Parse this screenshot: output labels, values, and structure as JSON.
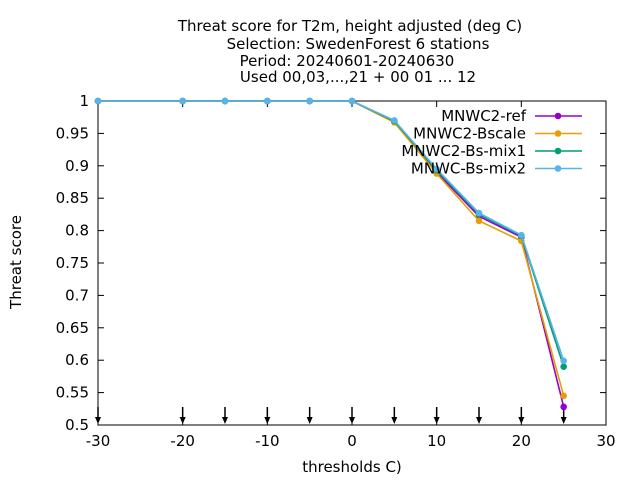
{
  "chart_data": {
    "type": "line",
    "title": [
      "Threat score  for T2m, height adjusted (deg C)",
      "Selection: SwedenForest      6 stations",
      "Period: 20240601-20240630",
      "Used 00,03,...,21 + 00 01 ... 12"
    ],
    "xlabel": "thresholds C)",
    "ylabel": "Threat score",
    "xlim": [
      -30,
      30
    ],
    "ylim": [
      0.5,
      1.0
    ],
    "xticks": [
      -30,
      -20,
      -10,
      0,
      10,
      20,
      30
    ],
    "xtick_labels": [
      "-30",
      "-20",
      "-10",
      "0",
      "10",
      "20",
      "30"
    ],
    "yticks": [
      0.5,
      0.55,
      0.6,
      0.65,
      0.7,
      0.75,
      0.8,
      0.85,
      0.9,
      0.95,
      1.0
    ],
    "ytick_labels": [
      "0.5",
      "0.55",
      "0.6",
      "0.65",
      "0.7",
      "0.75",
      "0.8",
      "0.85",
      "0.9",
      "0.95",
      "1"
    ],
    "x": [
      -30,
      -20,
      -15,
      -10,
      -5,
      0,
      5,
      10,
      15,
      20,
      25
    ],
    "arrow_x": [
      -30,
      -20,
      -15,
      -10,
      -5,
      0,
      5,
      10,
      15,
      20,
      25
    ],
    "legend_position": "top-right",
    "series": [
      {
        "name": "MNWC2-ref",
        "color": "#9400d3",
        "values": [
          1.0,
          1.0,
          1.0,
          1.0,
          1.0,
          1.0,
          0.968,
          0.89,
          0.822,
          0.79,
          0.528
        ]
      },
      {
        "name": "MNWC2-Bscale",
        "color": "#e69f00",
        "values": [
          1.0,
          1.0,
          1.0,
          1.0,
          1.0,
          1.0,
          0.967,
          0.888,
          0.815,
          0.784,
          0.545
        ]
      },
      {
        "name": "MNWC2-Bs-mix1",
        "color": "#009e73",
        "values": [
          1.0,
          1.0,
          1.0,
          1.0,
          1.0,
          1.0,
          0.969,
          0.893,
          0.825,
          0.792,
          0.59
        ]
      },
      {
        "name": "MNWC-Bs-mix2",
        "color": "#56b4e9",
        "values": [
          1.0,
          1.0,
          1.0,
          1.0,
          1.0,
          1.0,
          0.97,
          0.895,
          0.827,
          0.793,
          0.599
        ]
      }
    ]
  }
}
